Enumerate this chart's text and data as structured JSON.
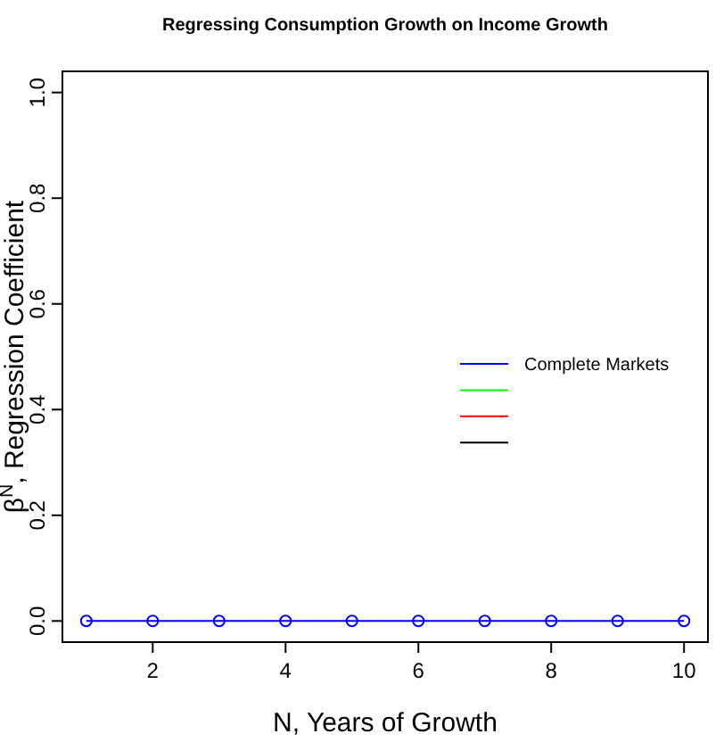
{
  "chart_data": {
    "type": "line",
    "title": "Regressing Consumption Growth on Income Growth",
    "xlabel": "N, Years of Growth",
    "ylabel": "β$^{N}$, Regression Coefficient",
    "x": [
      1,
      2,
      3,
      4,
      5,
      6,
      7,
      8,
      9,
      10
    ],
    "series": [
      {
        "name": "Complete Markets",
        "color": "#0000ff",
        "values": [
          0,
          0,
          0,
          0,
          0,
          0,
          0,
          0,
          0,
          0
        ],
        "marker": "circle"
      },
      {
        "color": "#00ff00",
        "values": [
          null,
          null,
          null,
          null,
          null,
          null,
          null,
          null,
          null,
          null
        ]
      },
      {
        "color": "#ff0000",
        "values": [
          null,
          null,
          null,
          null,
          null,
          null,
          null,
          null,
          null,
          null
        ]
      },
      {
        "color": "#000000",
        "values": [
          null,
          null,
          null,
          null,
          null,
          null,
          null,
          null,
          null,
          null
        ]
      }
    ],
    "xlim": [
      0.64,
      10.36
    ],
    "xticks": [
      2,
      4,
      6,
      8,
      10
    ],
    "ylim": [
      -0.04,
      1.04
    ],
    "yticks": [
      {
        "value": 0,
        "label": "0.0"
      },
      0.2,
      0.4,
      0.6,
      0.8,
      {
        "value": 1,
        "label": "1.0"
      }
    ],
    "grid": false,
    "legend": "right"
  }
}
